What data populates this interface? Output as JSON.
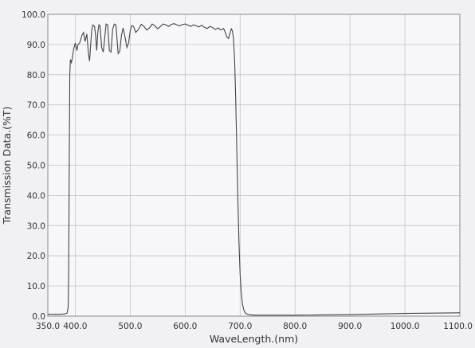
{
  "chart_data": {
    "type": "line",
    "title": "",
    "xlabel": "WaveLength.(nm)",
    "ylabel": "Transmission Data.(%T)",
    "xlim": [
      350,
      1100
    ],
    "ylim": [
      0,
      100
    ],
    "xticks": [
      "350.0",
      "400.0",
      "500.0",
      "600.0",
      "700.0",
      "800.0",
      "900.0",
      "1000.0",
      "1100.0"
    ],
    "yticks": [
      "0.0",
      "10.0",
      "20.0",
      "30.0",
      "40.0",
      "50.0",
      "60.0",
      "70.0",
      "80.0",
      "90.0",
      "100.0"
    ],
    "grid": true,
    "legend": "none",
    "line_color": "#444444",
    "series": [
      {
        "x": [
          350,
          360,
          370,
          380,
          385,
          387,
          388,
          389,
          390,
          391,
          393,
          395,
          397,
          400,
          403,
          405,
          408,
          412,
          415,
          418,
          421,
          424,
          426,
          428,
          430,
          432,
          435,
          437,
          439,
          441,
          443,
          445,
          448,
          451,
          454,
          456,
          459,
          462,
          465,
          468,
          471,
          474,
          478,
          481,
          484,
          487,
          490,
          494,
          497,
          500,
          503,
          506,
          510,
          515,
          520,
          525,
          530,
          535,
          540,
          545,
          550,
          555,
          560,
          565,
          570,
          575,
          580,
          585,
          590,
          595,
          600,
          605,
          610,
          615,
          620,
          625,
          630,
          635,
          640,
          645,
          650,
          655,
          660,
          665,
          670,
          673,
          676,
          679,
          682,
          684,
          686,
          688,
          690,
          692,
          694,
          696,
          698,
          700,
          702,
          704,
          706,
          708,
          710,
          713,
          716,
          720,
          725,
          730,
          740,
          750,
          770,
          800,
          850,
          900,
          950,
          1000,
          1050,
          1100
        ],
        "y": [
          0.6,
          0.6,
          0.6,
          0.7,
          1.0,
          3.0,
          15.0,
          50.0,
          80.0,
          85.0,
          84.0,
          86.0,
          88.5,
          90.5,
          88.0,
          90.0,
          90.5,
          93.0,
          94.0,
          91.0,
          93.5,
          87.0,
          84.5,
          90.0,
          95.0,
          96.5,
          96.0,
          93.0,
          88.0,
          94.0,
          96.5,
          96.3,
          89.0,
          87.5,
          93.0,
          96.8,
          96.5,
          88.0,
          87.5,
          95.0,
          96.8,
          96.5,
          87.0,
          87.8,
          93.0,
          95.5,
          93.0,
          89.0,
          90.5,
          94.5,
          96.3,
          96.0,
          94.0,
          95.0,
          96.7,
          96.0,
          94.8,
          95.5,
          96.8,
          96.2,
          95.2,
          96.0,
          96.8,
          96.5,
          96.0,
          96.7,
          96.9,
          96.5,
          96.2,
          96.6,
          96.8,
          96.4,
          96.0,
          96.5,
          96.2,
          95.8,
          96.4,
          95.7,
          95.3,
          96.0,
          95.6,
          95.0,
          95.5,
          94.8,
          95.3,
          94.0,
          92.5,
          92.0,
          94.0,
          95.2,
          94.5,
          92.0,
          85.0,
          72.0,
          55.0,
          38.0,
          24.0,
          14.0,
          8.0,
          4.5,
          2.5,
          1.5,
          1.0,
          0.7,
          0.5,
          0.4,
          0.35,
          0.3,
          0.3,
          0.3,
          0.3,
          0.3,
          0.4,
          0.5,
          0.7,
          0.9,
          1.0,
          1.1
        ]
      }
    ]
  }
}
